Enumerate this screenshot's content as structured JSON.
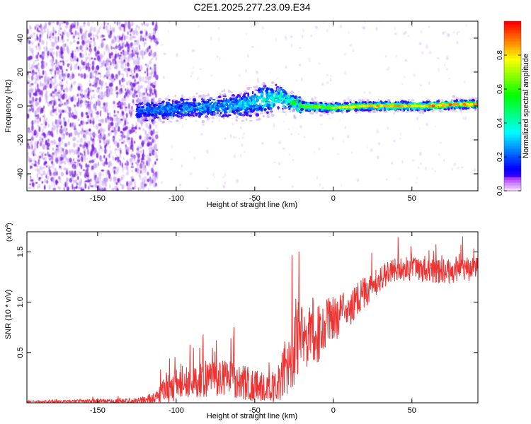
{
  "title": "C2E1.2025.277.23.09.E34",
  "chart_data": [
    {
      "type": "heatmap",
      "name": "spectrogram",
      "xlabel": "Height of straight line (km)",
      "ylabel": "Frequency (Hz)",
      "xlim": [
        -195,
        92
      ],
      "ylim": [
        -50,
        50
      ],
      "xticks": [
        -150,
        -100,
        -50,
        0,
        50
      ],
      "yticks": [
        -40,
        -20,
        0,
        20,
        40
      ],
      "colorbar": {
        "label": "Normalized spectral amplitude",
        "range": [
          0,
          1
        ],
        "ticks": [
          "0.0",
          "0.2",
          "0.4",
          "0.6",
          "0.8"
        ],
        "tick_values": [
          0,
          0.2,
          0.4,
          0.6,
          0.8
        ],
        "colormap": "rainbow (violet to red)"
      },
      "ridge": {
        "x": [
          -125,
          -110,
          -90,
          -70,
          -55,
          -45,
          -35,
          -28,
          -20,
          0,
          20,
          40,
          60,
          80,
          92
        ],
        "y": [
          -3,
          -2,
          -1,
          0,
          1,
          4,
          5,
          3,
          0,
          -1,
          0,
          0,
          0,
          1,
          1
        ],
        "halfwidth_hz": [
          4,
          5,
          5,
          6,
          7,
          9,
          7,
          4,
          3,
          2.5,
          2.5,
          2.5,
          2.5,
          2.5,
          2.5
        ],
        "peak_amplitude": [
          0.25,
          0.3,
          0.32,
          0.3,
          0.35,
          0.4,
          0.45,
          0.55,
          0.65,
          0.72,
          0.82,
          0.88,
          0.9,
          0.9,
          0.9
        ]
      },
      "noise_region_x": [
        -195,
        -120
      ]
    },
    {
      "type": "line",
      "name": "snr",
      "xlabel": "Height of straight line (km)",
      "ylabel": "SNR (10 * v/v)",
      "yscale_label": "(x10",
      "yscale_exponent": "4",
      "xlim": [
        -195,
        92
      ],
      "ylim": [
        0,
        17
      ],
      "ylim_units": "x10^3",
      "xticks": [
        -150,
        -100,
        -50,
        0,
        50
      ],
      "yticks": [
        0.5,
        1.0,
        1.5
      ],
      "ytick_labels": [
        "0.5",
        "1.0",
        "1.5"
      ],
      "color": "#ee3333",
      "x": [
        -195,
        -160,
        -125,
        -115,
        -110,
        -100,
        -90,
        -80,
        -70,
        -60,
        -50,
        -40,
        -35,
        -30,
        -25,
        -20,
        -15,
        -10,
        -5,
        0,
        5,
        10,
        15,
        20,
        25,
        30,
        35,
        40,
        50,
        60,
        70,
        80,
        92
      ],
      "y": [
        0.1,
        0.15,
        0.2,
        0.4,
        1.0,
        1.7,
        2.2,
        2.4,
        2.5,
        2.2,
        1.7,
        1.5,
        1.8,
        3.5,
        5.5,
        6.5,
        7.0,
        6.8,
        7.5,
        8.3,
        8.7,
        9.3,
        10.2,
        11.0,
        11.5,
        12.2,
        13.0,
        13.3,
        13.3,
        13.2,
        13.0,
        13.1,
        13.4
      ],
      "spread": [
        0.1,
        0.15,
        0.3,
        0.6,
        1.2,
        1.8,
        1.8,
        1.8,
        1.8,
        1.8,
        1.6,
        1.4,
        2.0,
        3.0,
        4.0,
        4.0,
        3.5,
        3.0,
        2.8,
        2.5,
        2.3,
        2.0,
        1.8,
        1.6,
        1.4,
        1.3,
        1.2,
        1.2,
        1.2,
        1.2,
        1.2,
        1.2,
        1.2
      ]
    }
  ]
}
